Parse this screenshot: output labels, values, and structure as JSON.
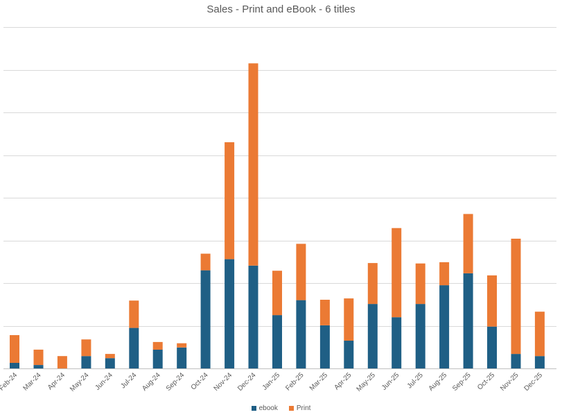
{
  "chart_data": {
    "type": "bar",
    "stacked": true,
    "title": "Sales - Print and eBook - 6 titles",
    "xlabel": "",
    "ylabel": "",
    "ylim": [
      0,
      8
    ],
    "y_grid_step": 1,
    "grid": true,
    "legend_position": "bottom",
    "categories": [
      "Feb-24",
      "Mar-24",
      "Apr-24",
      "May-24",
      "Jun-24",
      "Jul-24",
      "Aug-24",
      "Sep-24",
      "Oct-24",
      "Nov-24",
      "Dec-24",
      "Jan-25",
      "Feb-25",
      "Mar-25",
      "Apr-25",
      "May-25",
      "Jun-25",
      "Jul-25",
      "Aug-25",
      "Sep-25",
      "Oct-25",
      "Nov-25",
      "Dec-25"
    ],
    "series": [
      {
        "name": "ebook",
        "color": "#1f5f85",
        "values": [
          0.13,
          0.08,
          0,
          0.29,
          0.24,
          0.95,
          0.44,
          0.49,
          2.3,
          2.56,
          2.41,
          1.25,
          1.6,
          1.01,
          0.65,
          1.51,
          1.2,
          1.51,
          1.95,
          2.23,
          0.98,
          0.34,
          0.29
        ]
      },
      {
        "name": "Print",
        "color": "#eb7a34",
        "values": [
          0.65,
          0.36,
          0.29,
          0.39,
          0.1,
          0.64,
          0.18,
          0.1,
          0.39,
          2.74,
          4.74,
          1.04,
          1.32,
          0.6,
          0.99,
          0.96,
          2.09,
          0.95,
          0.54,
          1.39,
          1.2,
          2.7,
          1.04
        ]
      }
    ]
  }
}
